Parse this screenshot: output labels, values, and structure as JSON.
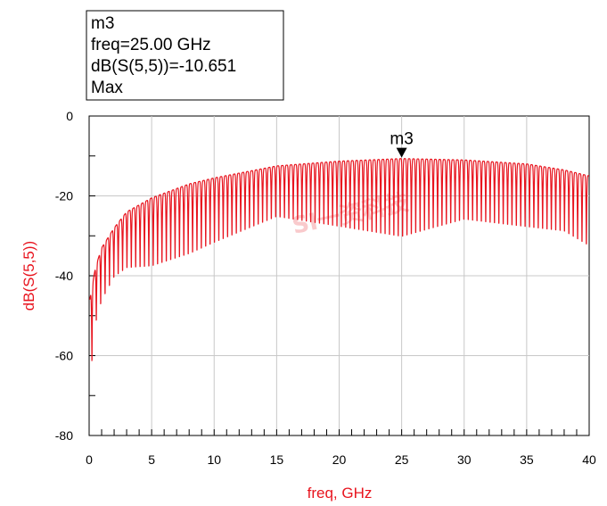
{
  "chart_data": {
    "type": "line",
    "xlabel": "freq, GHz",
    "ylabel": "dB(S(5,5))",
    "xlim": [
      0,
      40
    ],
    "ylim": [
      -80,
      0
    ],
    "x_ticks": [
      0,
      5,
      10,
      15,
      20,
      25,
      30,
      35,
      40
    ],
    "y_ticks": [
      0,
      -20,
      -40,
      -60,
      -80
    ],
    "grid": true,
    "series_color": "#e8141e",
    "envelope": {
      "x": [
        0.05,
        0.5,
        1,
        2,
        3,
        5,
        8,
        10,
        15,
        20,
        25,
        30,
        35,
        38,
        40
      ],
      "upper": [
        -46,
        -38,
        -33,
        -28,
        -24,
        -20.5,
        -17,
        -15.5,
        -12.5,
        -11.3,
        -10.651,
        -11,
        -12,
        -13.5,
        -15
      ],
      "lower": [
        -70,
        -54,
        -48,
        -42,
        -40,
        -40,
        -37,
        -34,
        -27,
        -30,
        -33,
        -28,
        -30,
        -31,
        -35
      ]
    },
    "ripple_period_ghz": 0.35,
    "marker": {
      "label": "m3",
      "freq": 25.0,
      "value": -10.651,
      "lines": [
        "m3",
        "freq=25.00 GHz",
        "dB(S(5,5))=-10.651",
        "Max"
      ]
    },
    "watermark": "SI一资科技"
  }
}
